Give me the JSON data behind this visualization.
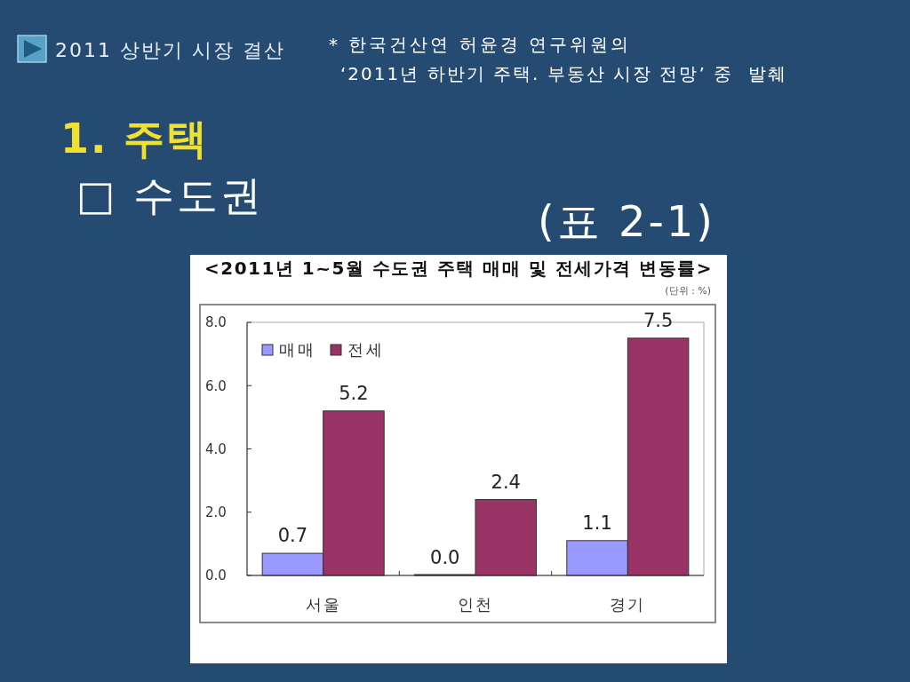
{
  "chart_data": {
    "type": "bar",
    "title": "<2011년 1~5월 수도권 주택 매매 및 전세가격 변동률>",
    "subtitle": "(단위 : %)",
    "annotations": [
      "2011 상반기 시장 결산",
      "* 한국건산연 허윤경 연구위원의",
      "‘2011년 하반기 주택. 부동산 시장 전망’ 중  발췌",
      "1. 주택",
      "□ 수도권",
      "(표 2-1)"
    ],
    "categories": [
      "서울",
      "인천",
      "경기"
    ],
    "series": [
      {
        "name": "매매",
        "color": "#9999ff",
        "values": [
          0.7,
          0.0,
          1.1
        ],
        "value_labels": [
          "0.7",
          "0.0",
          "1.1"
        ]
      },
      {
        "name": "전세",
        "color": "#993366",
        "values": [
          5.2,
          2.4,
          7.5
        ],
        "value_labels": [
          "5.2",
          "2.4",
          "7.5"
        ]
      }
    ],
    "ylim": [
      0,
      8
    ],
    "yticks": [
      {
        "value": 0,
        "label": "0.0"
      },
      {
        "value": 2,
        "label": "2.0"
      },
      {
        "value": 4,
        "label": "4.0"
      },
      {
        "value": 6,
        "label": "6.0"
      },
      {
        "value": 8,
        "label": "8.0"
      }
    ],
    "legend": "top left"
  }
}
